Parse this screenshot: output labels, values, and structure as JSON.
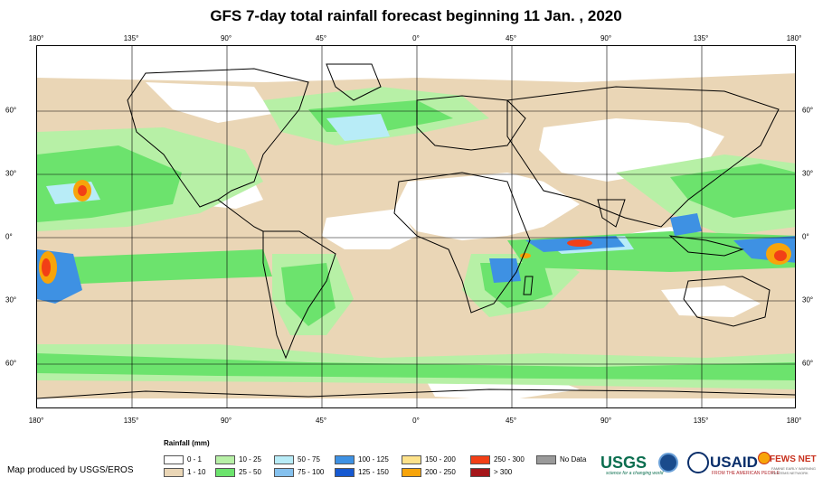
{
  "title": "GFS 7-day total rainfall forecast beginning 11 Jan. , 2020",
  "map": {
    "longitude_ticks": [
      "180°",
      "135°",
      "90°",
      "45°",
      "0°",
      "45°",
      "90°",
      "135°",
      "180°"
    ],
    "latitude_ticks": [
      "60°",
      "30°",
      "0°",
      "30°",
      "60°"
    ],
    "lon_range": [
      -180,
      180
    ],
    "lat_range": [
      -82,
      90
    ]
  },
  "legend": {
    "title": "Rainfall (mm)",
    "items": [
      {
        "label": "0 - 1",
        "color": "#ffffff"
      },
      {
        "label": "1 - 10",
        "color": "#ead6b6"
      },
      {
        "label": "10 - 25",
        "color": "#b7f0a6"
      },
      {
        "label": "25 - 50",
        "color": "#6ce36d"
      },
      {
        "label": "50 - 75",
        "color": "#b8ecf7"
      },
      {
        "label": "75 - 100",
        "color": "#85c1ee"
      },
      {
        "label": "100 - 125",
        "color": "#3e91e3"
      },
      {
        "label": "125 - 150",
        "color": "#1659d1"
      },
      {
        "label": "150 - 200",
        "color": "#fde28a"
      },
      {
        "label": "200 - 250",
        "color": "#f7a40a"
      },
      {
        "label": "250 - 300",
        "color": "#f23f16"
      },
      {
        "label": "> 300",
        "color": "#a5161a"
      },
      {
        "label": "No Data",
        "color": "#9a9a9a"
      }
    ]
  },
  "credit": "Map produced by USGS/EROS",
  "logos": {
    "usgs": "USGS",
    "usgs_tagline": "science for a changing world",
    "usaid": "USAID",
    "usaid_tagline": "FROM THE AMERICAN PEOPLE",
    "fews": "FEWS NET",
    "fews_tagline": "FAMINE EARLY WARNING SYSTEMS NETWORK"
  }
}
